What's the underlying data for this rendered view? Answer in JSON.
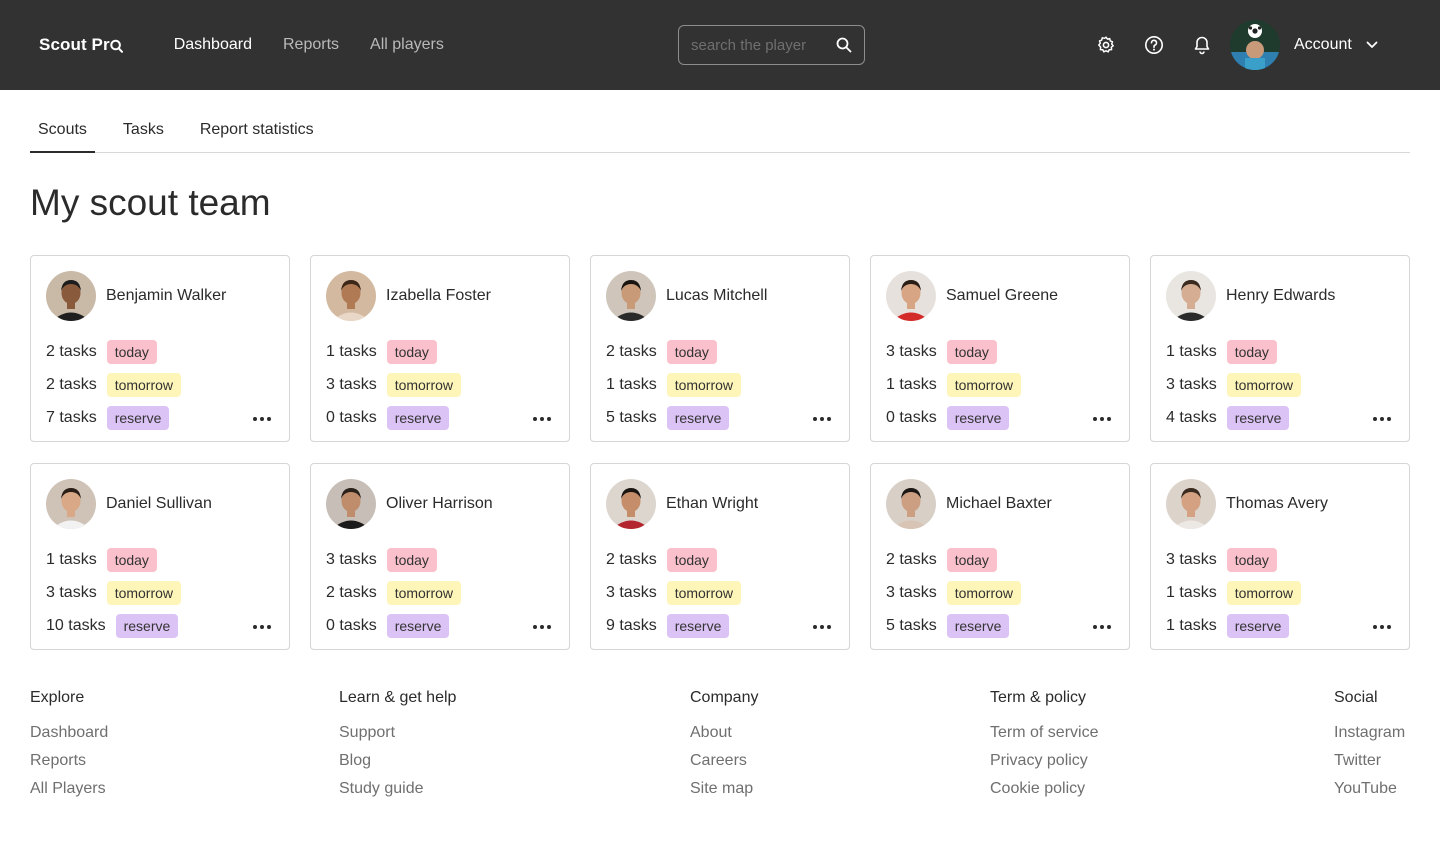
{
  "header": {
    "logo": "Scout Pr",
    "nav": [
      "Dashboard",
      "Reports",
      "All players"
    ],
    "search_placeholder": "search the player",
    "account_label": "Account"
  },
  "tabs": [
    "Scouts",
    "Tasks",
    "Report statistics"
  ],
  "page_title": "My scout team",
  "labels": {
    "today": "today",
    "tomorrow": "tomorrow",
    "reserve": "reserve"
  },
  "scouts": [
    {
      "name": "Benjamin Walker",
      "today": "2 tasks",
      "tomorrow": "2 tasks",
      "reserve": "7 tasks",
      "skin": "#8a5a3c",
      "hair": "#1d1d1d",
      "shirt": "#1f1f1f",
      "bg": "#c9b9a7"
    },
    {
      "name": "Izabella Foster",
      "today": "1 tasks",
      "tomorrow": "3 tasks",
      "reserve": "0 tasks",
      "skin": "#b07a55",
      "hair": "#3b2618",
      "shirt": "#e9d8c8",
      "bg": "#d3b9a0"
    },
    {
      "name": "Lucas Mitchell",
      "today": "2 tasks",
      "tomorrow": "1 tasks",
      "reserve": "5 tasks",
      "skin": "#c89a78",
      "hair": "#1a1410",
      "shirt": "#2a2a2a",
      "bg": "#cfc5bb"
    },
    {
      "name": "Samuel Greene",
      "today": "3 tasks",
      "tomorrow": "1 tasks",
      "reserve": "0 tasks",
      "skin": "#d7a584",
      "hair": "#2a1d16",
      "shirt": "#d32a2a",
      "bg": "#e6e1dc"
    },
    {
      "name": "Henry Edwards",
      "today": "1 tasks",
      "tomorrow": "3 tasks",
      "reserve": "4 tasks",
      "skin": "#d5ad92",
      "hair": "#3a2a20",
      "shirt": "#2b2b2b",
      "bg": "#e9e6e2"
    },
    {
      "name": "Daniel Sullivan",
      "today": "1 tasks",
      "tomorrow": "3 tasks",
      "reserve": "10 tasks",
      "skin": "#d9a987",
      "hair": "#2a1e16",
      "shirt": "#f2f2f2",
      "bg": "#cfc3b8"
    },
    {
      "name": "Oliver Harrison",
      "today": "3 tasks",
      "tomorrow": "2 tasks",
      "reserve": "0 tasks",
      "skin": "#c08d6c",
      "hair": "#2b211b",
      "shirt": "#1b1b1b",
      "bg": "#c7bfb7"
    },
    {
      "name": "Ethan Wright",
      "today": "2 tasks",
      "tomorrow": "3 tasks",
      "reserve": "9 tasks",
      "skin": "#c58d6a",
      "hair": "#1b1512",
      "shirt": "#b3262e",
      "bg": "#ddd6cf"
    },
    {
      "name": "Michael Baxter",
      "today": "2 tasks",
      "tomorrow": "3 tasks",
      "reserve": "5 tasks",
      "skin": "#cc9f83",
      "hair": "#1c1714",
      "shirt": "#d8c4b4",
      "bg": "#d8cfc6"
    },
    {
      "name": "Thomas Avery",
      "today": "3 tasks",
      "tomorrow": "1 tasks",
      "reserve": "1 tasks",
      "skin": "#d4a282",
      "hair": "#3a2a1f",
      "shirt": "#ece8e4",
      "bg": "#dcd3cb"
    }
  ],
  "footer": [
    {
      "title": "Explore",
      "links": [
        "Dashboard",
        "Reports",
        "All Players"
      ]
    },
    {
      "title": "Learn & get help",
      "links": [
        "Support",
        "Blog",
        "Study guide"
      ]
    },
    {
      "title": "Company",
      "links": [
        "About",
        "Careers",
        "Site map"
      ]
    },
    {
      "title": "Term & policy",
      "links": [
        "Term of service",
        "Privacy policy",
        "Cookie policy"
      ]
    },
    {
      "title": "Social",
      "links": [
        "Instagram",
        "Twitter",
        "YouTube"
      ]
    }
  ]
}
